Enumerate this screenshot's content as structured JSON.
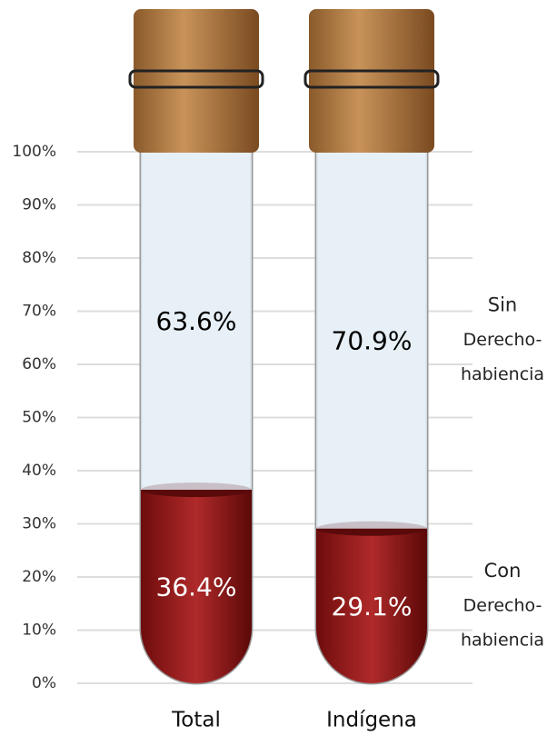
{
  "chart_data": {
    "type": "bar",
    "stacked": true,
    "categories": [
      "Total",
      "Indígena"
    ],
    "series": [
      {
        "name": [
          "Con",
          "Derecho-",
          "habiencia"
        ],
        "color": "#8e1616",
        "values": [
          36.4,
          29.1
        ],
        "value_labels": [
          "36.4%",
          "29.1%"
        ]
      },
      {
        "name": [
          "Sin",
          "Derecho-",
          "habiencia"
        ],
        "color": "#e3eef5",
        "values": [
          63.6,
          70.9
        ],
        "value_labels": [
          "63.6%",
          "70.9%"
        ]
      }
    ],
    "ylim": [
      0,
      100
    ],
    "yticks": [
      {
        "value": 0,
        "label": "0%"
      },
      {
        "value": 10,
        "label": "10%"
      },
      {
        "value": 20,
        "label": "20%"
      },
      {
        "value": 30,
        "label": "30%"
      },
      {
        "value": 40,
        "label": "40%"
      },
      {
        "value": 50,
        "label": "50%"
      },
      {
        "value": 60,
        "label": "60%"
      },
      {
        "value": 70,
        "label": "70%"
      },
      {
        "value": 80,
        "label": "80%"
      },
      {
        "value": 90,
        "label": "90%"
      },
      {
        "value": 100,
        "label": "100%"
      }
    ],
    "grid": true
  }
}
